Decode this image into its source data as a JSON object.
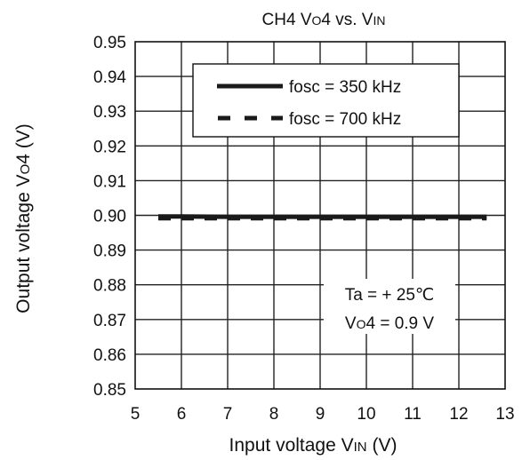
{
  "chart_data": {
    "type": "line",
    "title": "CH4 VO4 vs. VIN",
    "title_parts": [
      "CH4 V",
      "O",
      "4 vs. V",
      "IN"
    ],
    "xlabel": "Input voltage VIN (V)",
    "xlabel_parts": [
      "Input voltage V",
      "IN",
      " (V)"
    ],
    "ylabel": "Output voltage VO4 (V)",
    "ylabel_parts": [
      "Output voltage V",
      "O",
      "4 (V)"
    ],
    "xlim": [
      5,
      13
    ],
    "ylim": [
      0.85,
      0.95
    ],
    "xticks": [
      5,
      6,
      7,
      8,
      9,
      10,
      11,
      12,
      13
    ],
    "xtick_labels": [
      "5",
      "6",
      "7",
      "8",
      "9",
      "10",
      "11",
      "12",
      "13"
    ],
    "yticks": [
      0.85,
      0.86,
      0.87,
      0.88,
      0.89,
      0.9,
      0.91,
      0.92,
      0.93,
      0.94,
      0.95
    ],
    "ytick_labels": [
      "0.85",
      "0.86",
      "0.87",
      "0.88",
      "0.89",
      "0.90",
      "0.91",
      "0.92",
      "0.93",
      "0.94",
      "0.95"
    ],
    "grid": true,
    "legend_position": "top-right",
    "series": [
      {
        "name": "fosc = 350 kHz",
        "style": "solid",
        "color": "#1a1a1a",
        "x": [
          5.5,
          6.0,
          7.0,
          8.0,
          9.0,
          10.0,
          11.0,
          12.0,
          12.6
        ],
        "y": [
          0.8997,
          0.8997,
          0.8996,
          0.8996,
          0.8996,
          0.8996,
          0.8996,
          0.8996,
          0.8996
        ]
      },
      {
        "name": "fosc = 700 kHz",
        "style": "dashed",
        "color": "#1a1a1a",
        "x": [
          5.5,
          6.0,
          7.0,
          8.0,
          9.0,
          10.0,
          11.0,
          12.0,
          12.6
        ],
        "y": [
          0.8991,
          0.8991,
          0.8991,
          0.8991,
          0.8991,
          0.8991,
          0.8991,
          0.8991,
          0.8991
        ]
      }
    ],
    "annotations": [
      {
        "parts": [
          "Ta = + 25℃"
        ]
      },
      {
        "parts": [
          "V",
          "O",
          "4 = 0.9 V"
        ]
      }
    ]
  }
}
